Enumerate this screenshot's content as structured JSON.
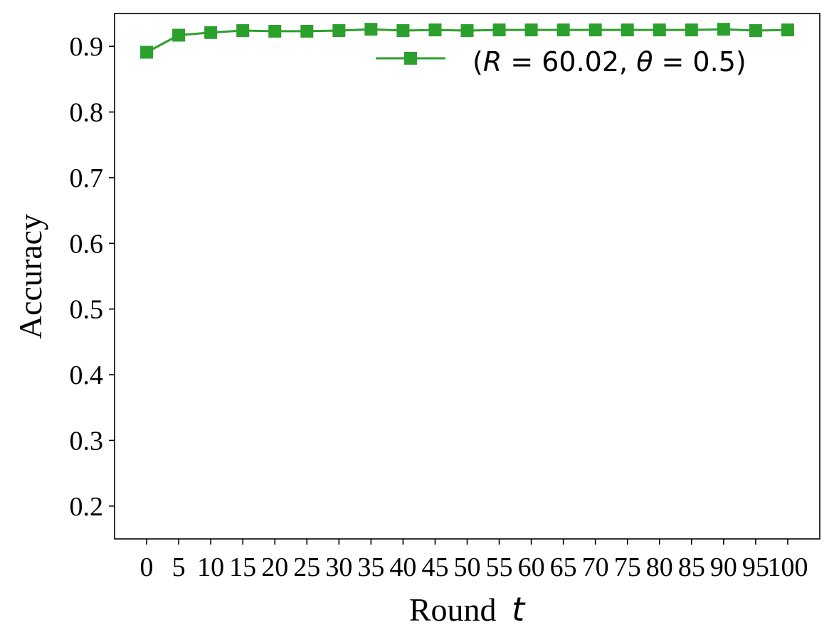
{
  "chart_data": {
    "type": "line",
    "x": [
      0,
      5,
      10,
      15,
      20,
      25,
      30,
      35,
      40,
      45,
      50,
      55,
      60,
      65,
      70,
      75,
      80,
      85,
      90,
      95,
      100
    ],
    "x_tick_labels": [
      "0",
      "5",
      "10",
      "15",
      "20",
      "25",
      "30",
      "35",
      "40",
      "45",
      "50",
      "55",
      "60",
      "65",
      "70",
      "75",
      "80",
      "85",
      "90",
      "95",
      "100"
    ],
    "y_ticks": [
      0.2,
      0.3,
      0.4,
      0.5,
      0.6,
      0.7,
      0.8,
      0.9
    ],
    "y_tick_labels": [
      "0.2",
      "0.3",
      "0.4",
      "0.5",
      "0.6",
      "0.7",
      "0.8",
      "0.9"
    ],
    "ylim": [
      0.15,
      0.95
    ],
    "xlim": [
      -5,
      105
    ],
    "series": [
      {
        "name": "(R = 60.02, θ = 0.5)",
        "color": "#2ca02c",
        "marker": "square",
        "values": [
          0.891,
          0.917,
          0.921,
          0.924,
          0.923,
          0.923,
          0.924,
          0.926,
          0.924,
          0.925,
          0.924,
          0.925,
          0.925,
          0.925,
          0.925,
          0.925,
          0.925,
          0.925,
          0.926,
          0.924,
          0.925
        ]
      }
    ],
    "xlabel": "Round",
    "xlabel_var": "t",
    "ylabel": "Accuracy",
    "grid": false,
    "legend_position": "top-right",
    "legend_parts": {
      "open": "(",
      "r": "R",
      "eq1": " = 60.02, ",
      "theta": "θ",
      "eq2": " = 0.5)"
    }
  }
}
